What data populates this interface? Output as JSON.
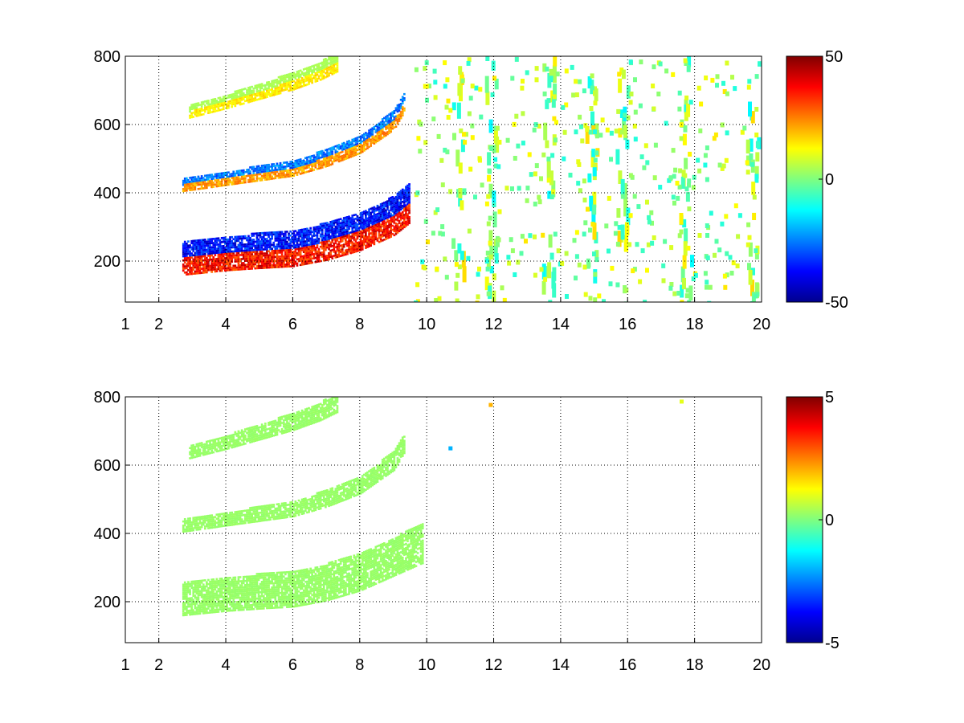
{
  "chart_data": [
    {
      "type": "heatmap",
      "title": "",
      "xlabel": "",
      "ylabel": "",
      "xlim": [
        1,
        20
      ],
      "ylim": [
        80,
        800
      ],
      "grid": true,
      "x_ticks": [
        1,
        2,
        4,
        6,
        8,
        10,
        12,
        14,
        16,
        18,
        20
      ],
      "x_tick_labels": [
        "1",
        "2",
        "4",
        "6",
        "8",
        "10",
        "12",
        "14",
        "16",
        "18",
        "20"
      ],
      "y_ticks": [
        200,
        400,
        600,
        800
      ],
      "y_tick_labels": [
        "200",
        "400",
        "600",
        "800"
      ],
      "colormap": "jet",
      "clim": [
        -50,
        50
      ],
      "colorbar_ticks": [
        -50,
        0,
        50
      ],
      "colorbar_tick_labels": [
        "-50",
        "0",
        "50"
      ],
      "bands": [
        {
          "x": [
            2.7,
            4,
            5,
            6,
            7,
            8,
            9,
            9.5
          ],
          "y": [
            205,
            220,
            228,
            235,
            255,
            285,
            330,
            370
          ],
          "value_low": 45,
          "value_high": -45
        },
        {
          "x": [
            2.7,
            4,
            5,
            6,
            7,
            8,
            9,
            9.3
          ],
          "y": [
            420,
            440,
            455,
            470,
            500,
            540,
            610,
            660
          ],
          "value_low": 28,
          "value_high": -32
        },
        {
          "x": [
            2.9,
            4,
            5,
            6,
            6.8,
            7.3
          ],
          "y": [
            635,
            665,
            695,
            725,
            755,
            780
          ],
          "value_low": 18,
          "value_high": 5
        }
      ],
      "noise_columns_x": [
        10.9,
        11.9,
        13.6,
        14.9,
        15.8,
        17.7,
        19.7
      ]
    },
    {
      "type": "heatmap",
      "title": "",
      "xlabel": "",
      "ylabel": "",
      "xlim": [
        1,
        20
      ],
      "ylim": [
        80,
        800
      ],
      "grid": true,
      "x_ticks": [
        1,
        2,
        4,
        6,
        8,
        10,
        12,
        14,
        16,
        18,
        20
      ],
      "x_tick_labels": [
        "1",
        "2",
        "4",
        "6",
        "8",
        "10",
        "12",
        "14",
        "16",
        "18",
        "20"
      ],
      "y_ticks": [
        200,
        400,
        600,
        800
      ],
      "y_tick_labels": [
        "200",
        "400",
        "600",
        "800"
      ],
      "colormap": "jet",
      "clim": [
        -5,
        5
      ],
      "colorbar_ticks": [
        -5,
        0,
        5
      ],
      "colorbar_tick_labels": [
        "-5",
        "0",
        "5"
      ],
      "bands": [
        {
          "x": [
            2.7,
            4,
            5,
            6,
            7,
            8,
            9,
            9.9
          ],
          "y": [
            205,
            220,
            228,
            235,
            255,
            285,
            330,
            370
          ],
          "value_low": 0.3,
          "value_high": 0.3
        },
        {
          "x": [
            2.7,
            4,
            5,
            6,
            7,
            8,
            9,
            9.3
          ],
          "y": [
            420,
            440,
            455,
            470,
            500,
            540,
            610,
            660
          ],
          "value_low": 0.3,
          "value_high": 0.3
        },
        {
          "x": [
            2.9,
            4,
            5,
            6,
            6.8,
            7.3
          ],
          "y": [
            635,
            665,
            695,
            725,
            755,
            780
          ],
          "value_low": 0.3,
          "value_high": 0.3
        }
      ],
      "isolated_points": [
        {
          "x": 11.9,
          "y": 775,
          "value": 2.0
        },
        {
          "x": 10.7,
          "y": 648,
          "value": -2.0
        },
        {
          "x": 17.6,
          "y": 785,
          "value": 1.0
        }
      ]
    }
  ]
}
